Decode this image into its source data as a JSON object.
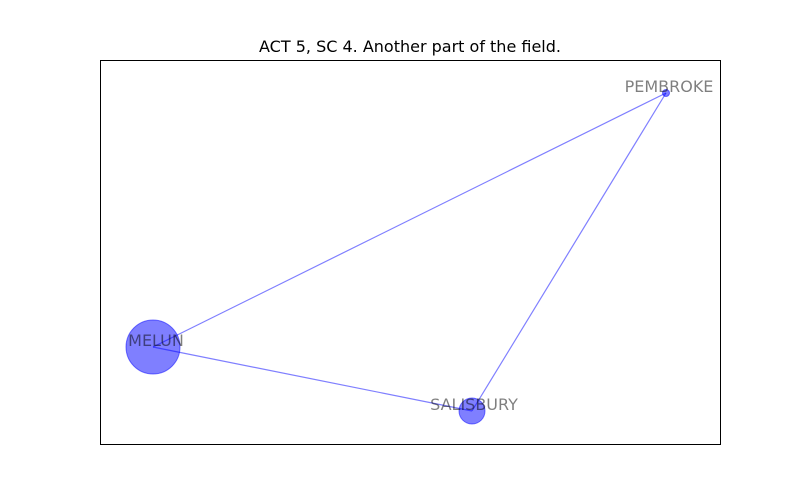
{
  "title": "ACT 5, SC 4. Another part of the field.",
  "colors": {
    "node": "#0000ff",
    "edge": "#0000ff",
    "frame": "#000000",
    "label": "#000000"
  },
  "nodes": [
    {
      "id": "melun",
      "label": "MELUN"
    },
    {
      "id": "salisbury",
      "label": "SALISBURY"
    },
    {
      "id": "pembroke",
      "label": "PEMBROKE"
    }
  ],
  "edges": [
    {
      "source": "melun",
      "target": "pembroke"
    },
    {
      "source": "melun",
      "target": "salisbury"
    },
    {
      "source": "salisbury",
      "target": "pembroke"
    }
  ]
}
